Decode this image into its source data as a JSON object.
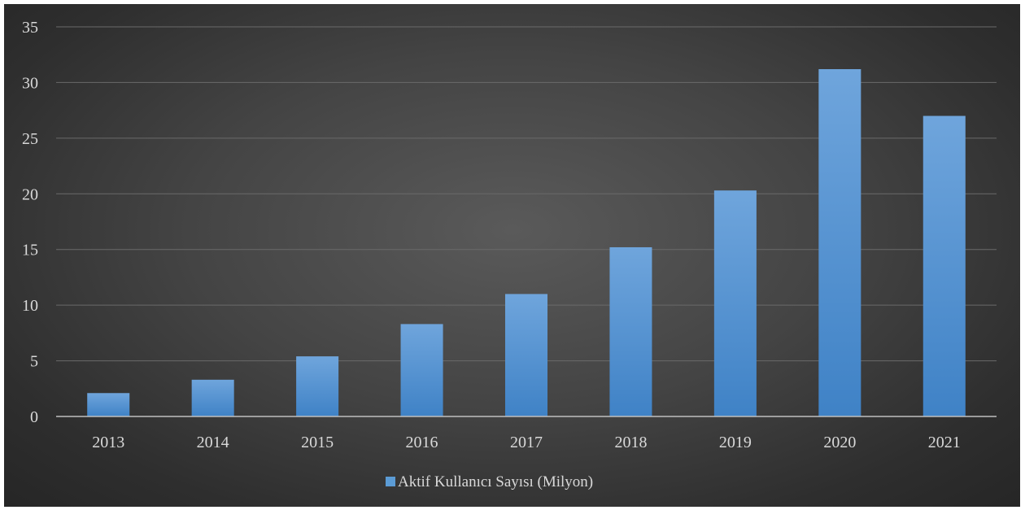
{
  "chart_data": {
    "type": "bar",
    "categories": [
      "2013",
      "2014",
      "2015",
      "2016",
      "2017",
      "2018",
      "2019",
      "2020",
      "2021"
    ],
    "series": [
      {
        "name": "Aktif Kullanıcı Sayısı (Milyon)",
        "values": [
          2.1,
          3.3,
          5.4,
          8.3,
          11.0,
          15.2,
          20.3,
          31.2,
          27.0
        ],
        "color": "#5b9bd5"
      }
    ],
    "title": "",
    "xlabel": "",
    "ylabel": "",
    "ylim": [
      0,
      35
    ],
    "yticks": [
      0,
      5,
      10,
      15,
      20,
      25,
      30,
      35
    ],
    "grid": true,
    "legend": "bottom-center"
  }
}
